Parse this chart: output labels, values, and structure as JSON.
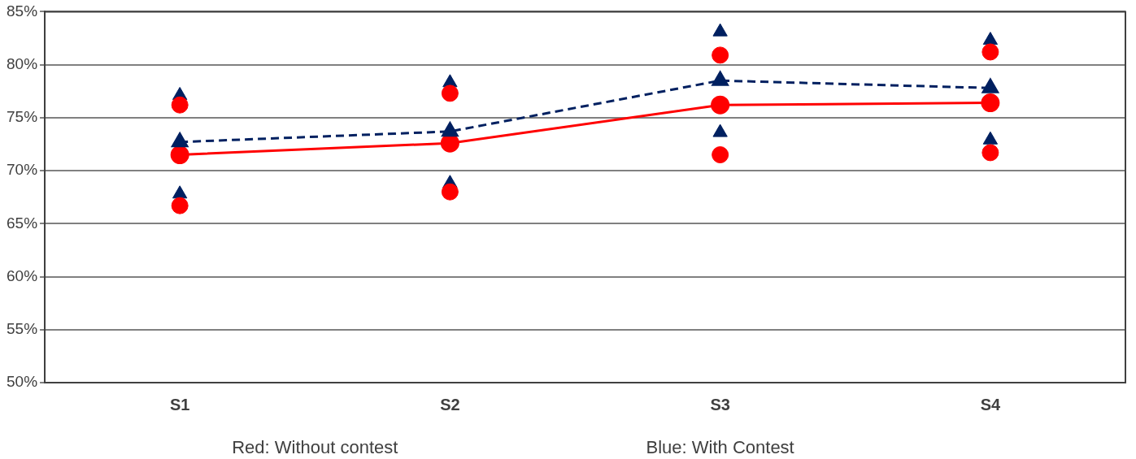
{
  "chart_data": {
    "type": "line",
    "categories": [
      "S1",
      "S2",
      "S3",
      "S4"
    ],
    "series": [
      {
        "type": "line",
        "color": "#002060",
        "line_style": "dashed",
        "marker": "triangle",
        "values": [
          72.7,
          73.7,
          78.5,
          77.8
        ]
      },
      {
        "type": "line",
        "color": "#ff0000",
        "line_style": "solid",
        "marker": "circle",
        "values": [
          71.5,
          72.6,
          76.2,
          76.4
        ]
      },
      {
        "type": "scatter",
        "color": "#ff0000",
        "marker": "circle",
        "x": [
          "S1",
          "S2",
          "S3",
          "S4"
        ],
        "values": [
          76.2,
          77.3,
          80.9,
          81.2
        ]
      },
      {
        "type": "scatter",
        "color": "#ff0000",
        "marker": "circle",
        "x": [
          "S1",
          "S2",
          "S3",
          "S4"
        ],
        "values": [
          66.7,
          68.0,
          71.5,
          71.7
        ]
      },
      {
        "type": "scatter",
        "color": "#002060",
        "marker": "triangle",
        "x": [
          "S1",
          "S2",
          "S3",
          "S4"
        ],
        "values": [
          77.1,
          78.3,
          83.1,
          82.3
        ]
      },
      {
        "type": "scatter",
        "color": "#002060",
        "marker": "triangle",
        "x": [
          "S1",
          "S2",
          "S3",
          "S4"
        ],
        "values": [
          67.8,
          68.8,
          73.6,
          72.9
        ]
      }
    ],
    "ylim": [
      50,
      85
    ],
    "yticks": [
      {
        "value": 50,
        "label": "50%"
      },
      {
        "value": 55,
        "label": "55%"
      },
      {
        "value": 60,
        "label": "60%"
      },
      {
        "value": 65,
        "label": "65%"
      },
      {
        "value": 70,
        "label": "70%"
      },
      {
        "value": 75,
        "label": "75%"
      },
      {
        "value": 80,
        "label": "80%"
      },
      {
        "value": 85,
        "label": "85%"
      }
    ],
    "grid": "y",
    "legend": false,
    "annotations": [
      "Red: Without contest",
      "Blue: With Contest"
    ]
  }
}
